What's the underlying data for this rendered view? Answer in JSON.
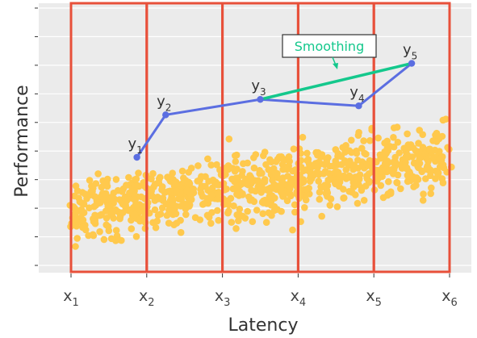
{
  "chart_data": {
    "type": "scatter",
    "title": "",
    "xlabel": "Latency",
    "ylabel": "Performance",
    "grid": true,
    "background": "#ebebeb",
    "colors": {
      "points": "#ffc94d",
      "bins": "#e8503a",
      "path": "#5b6ee1",
      "smoothing": "#14c88c",
      "annotation_border": "#333333"
    },
    "bin_edges": [
      {
        "base": "x",
        "sub": "1"
      },
      {
        "base": "x",
        "sub": "2"
      },
      {
        "base": "x",
        "sub": "3"
      },
      {
        "base": "x",
        "sub": "4"
      },
      {
        "base": "x",
        "sub": "5"
      },
      {
        "base": "x",
        "sub": "6"
      }
    ],
    "y_ticks_count": 10,
    "bin_points": [
      {
        "x": 0.87,
        "y": 4.2,
        "label": {
          "base": "y",
          "sub": "1"
        }
      },
      {
        "x": 1.25,
        "y": 5.85,
        "label": {
          "base": "y",
          "sub": "2"
        }
      },
      {
        "x": 2.5,
        "y": 6.45,
        "label": {
          "base": "y",
          "sub": "3"
        }
      },
      {
        "x": 3.8,
        "y": 6.2,
        "label": {
          "base": "y",
          "sub": "4"
        }
      },
      {
        "x": 4.5,
        "y": 7.85,
        "label": {
          "base": "y",
          "sub": "5"
        }
      }
    ],
    "smoothing": {
      "label": "Smoothing",
      "from": 2,
      "to": 4
    }
  }
}
